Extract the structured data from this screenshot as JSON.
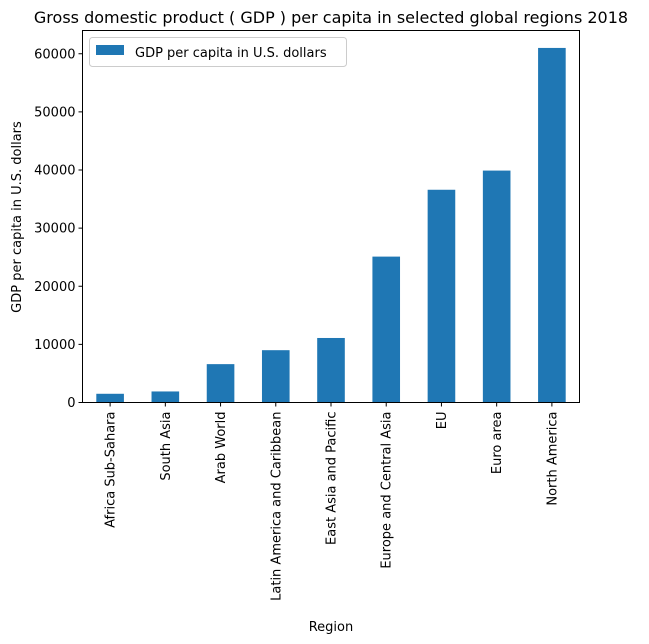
{
  "chart_data": {
    "type": "bar",
    "title": "Gross domestic product ( GDP ) per capita in selected global regions 2018",
    "xlabel": "Region",
    "ylabel": "GDP per capita in U.S. dollars",
    "categories": [
      "Africa Sub-Sahara",
      "South Asia",
      "Arab World",
      "Latin America and Caribbean",
      "East Asia and Pacific",
      "Europe and Central Asia",
      "EU",
      "Euro area",
      "North America"
    ],
    "series": [
      {
        "name": "GDP per capita in U.S. dollars",
        "values": [
          1500,
          1900,
          6600,
          9000,
          11100,
          25100,
          36600,
          39900,
          61000
        ],
        "color": "#1f77b4"
      }
    ],
    "ylim": [
      0,
      64000
    ],
    "yticks": [
      0,
      10000,
      20000,
      30000,
      40000,
      50000,
      60000
    ],
    "legend_position": "top-left",
    "grid": false
  }
}
